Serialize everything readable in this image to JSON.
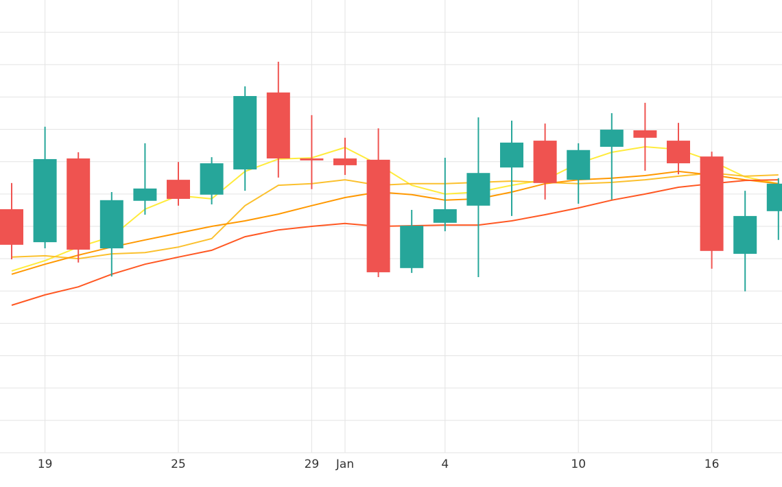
{
  "chart_data": {
    "type": "candlestick",
    "categories": [
      null,
      "19",
      null,
      null,
      null,
      "25",
      null,
      null,
      null,
      "29",
      "Jan",
      null,
      null,
      "4",
      null,
      null,
      null,
      "10",
      null,
      null,
      null,
      "16",
      null,
      null
    ],
    "open": [
      7.53,
      6.51,
      9.1,
      6.32,
      7.79,
      8.44,
      7.98,
      8.76,
      11.14,
      9.1,
      9.1,
      9.06,
      5.71,
      7.11,
      7.64,
      8.82,
      9.65,
      8.44,
      9.46,
      9.97,
      9.65,
      9.16,
      6.15,
      7.47
    ],
    "high": [
      8.34,
      10.08,
      9.29,
      8.06,
      9.57,
      8.99,
      9.14,
      11.33,
      12.09,
      10.44,
      9.74,
      10.03,
      7.51,
      9.12,
      10.37,
      10.27,
      10.18,
      9.57,
      10.5,
      10.82,
      10.2,
      9.31,
      8.1,
      8.49
    ],
    "low": [
      5.98,
      6.32,
      5.88,
      5.45,
      7.36,
      7.64,
      7.68,
      8.1,
      8.51,
      8.15,
      8.59,
      5.43,
      5.56,
      6.85,
      5.43,
      7.32,
      7.83,
      7.7,
      7.83,
      8.72,
      8.61,
      5.69,
      4.99,
      6.58
    ],
    "close": [
      6.43,
      9.08,
      6.28,
      7.81,
      8.17,
      7.85,
      8.95,
      11.03,
      9.1,
      9.04,
      8.89,
      5.58,
      7.02,
      7.53,
      8.65,
      9.59,
      8.34,
      9.36,
      9.99,
      9.74,
      8.95,
      6.24,
      7.32,
      8.32
    ],
    "up_color": "#26a69a",
    "down_color": "#ef5350",
    "series": [
      {
        "color": "#ffeb3b",
        "values": [
          5.62,
          5.94,
          6.36,
          6.68,
          7.53,
          7.95,
          7.85,
          8.7,
          9.08,
          9.12,
          9.44,
          8.91,
          8.27,
          8.0,
          8.06,
          8.27,
          8.44,
          8.95,
          9.29,
          9.46,
          9.38,
          9.02,
          8.53,
          8.32
        ]
      },
      {
        "color": "#fbc02d",
        "values": [
          6.05,
          6.09,
          6.0,
          6.15,
          6.19,
          6.36,
          6.62,
          7.64,
          8.27,
          8.32,
          8.44,
          8.27,
          8.32,
          8.32,
          8.36,
          8.4,
          8.36,
          8.32,
          8.36,
          8.44,
          8.55,
          8.65,
          8.55,
          8.59
        ]
      },
      {
        "color": "#ff9800",
        "values": [
          5.52,
          5.83,
          6.11,
          6.36,
          6.58,
          6.79,
          7.0,
          7.17,
          7.38,
          7.64,
          7.89,
          8.06,
          7.98,
          7.81,
          7.85,
          8.06,
          8.32,
          8.44,
          8.49,
          8.57,
          8.7,
          8.59,
          8.44,
          8.32
        ]
      },
      {
        "color": "#ff5722",
        "values": [
          4.56,
          4.88,
          5.13,
          5.52,
          5.83,
          6.05,
          6.26,
          6.68,
          6.89,
          7.0,
          7.09,
          7.0,
          7.02,
          7.04,
          7.04,
          7.17,
          7.36,
          7.57,
          7.81,
          8.0,
          8.21,
          8.32,
          8.42,
          8.44
        ]
      }
    ],
    "ylim": [
      0,
      14
    ],
    "ygrid": [
      1,
      2,
      3,
      4,
      5,
      6,
      7,
      8,
      9,
      10,
      11,
      12,
      13
    ],
    "grid": true
  }
}
